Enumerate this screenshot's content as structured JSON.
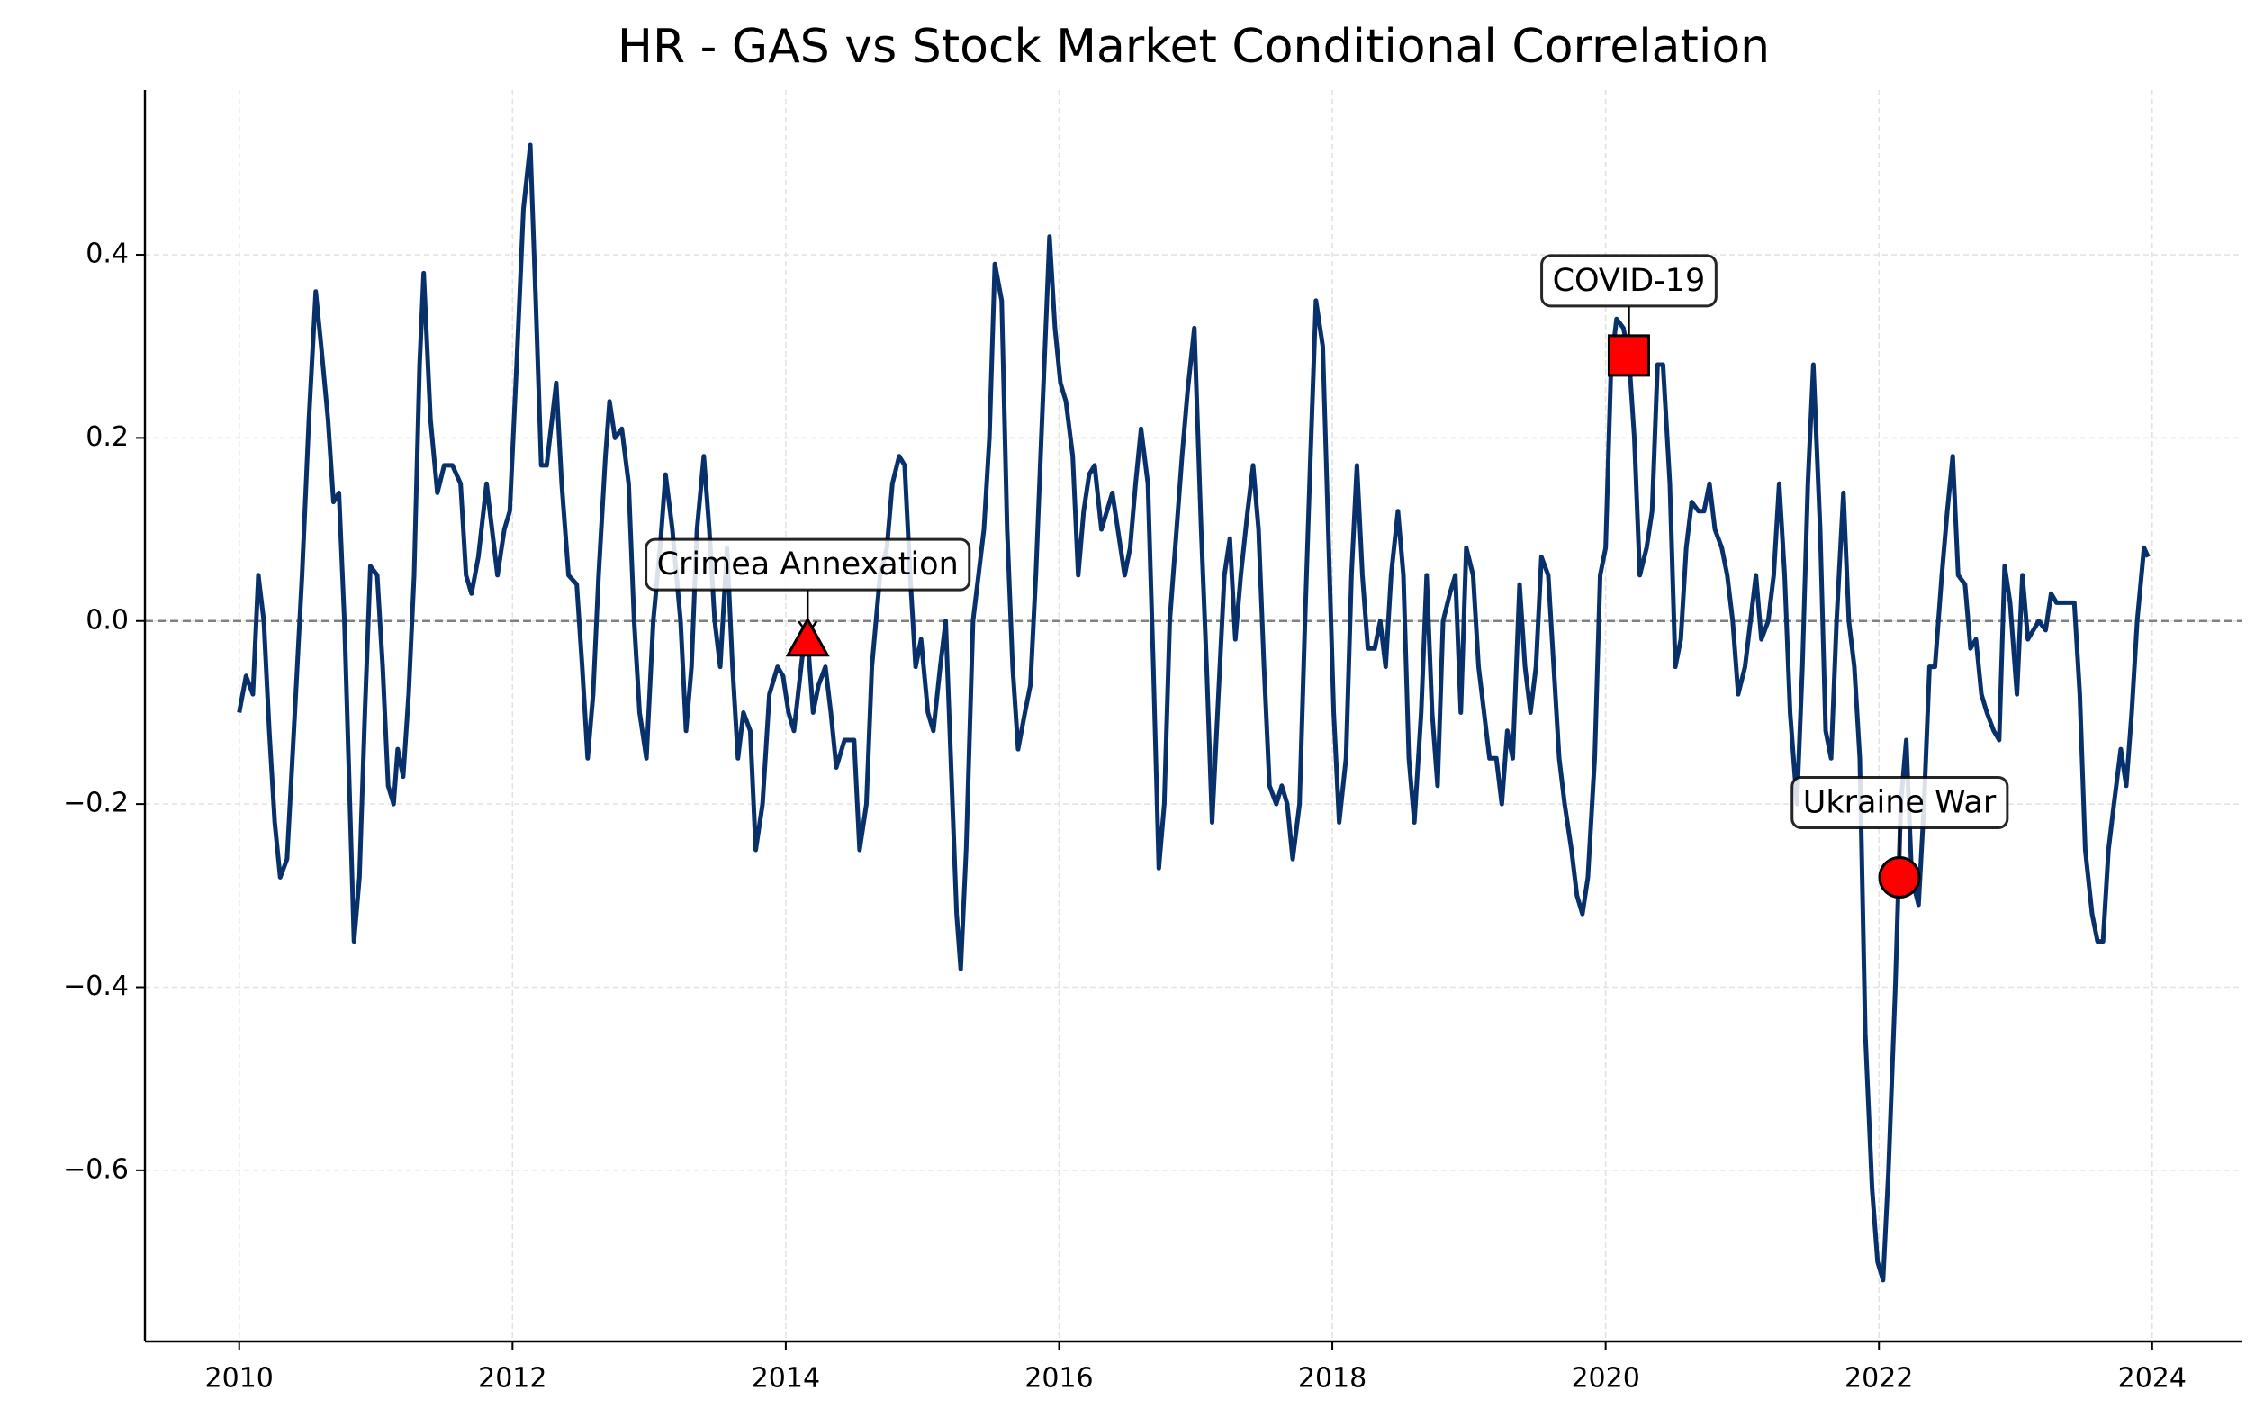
{
  "chart_data": {
    "type": "line",
    "title": "HR - GAS vs Stock Market Conditional Correlation",
    "x": [
      2010.0,
      2010.05,
      2010.1,
      2010.14,
      2010.18,
      2010.22,
      2010.26,
      2010.3,
      2010.35,
      2010.4,
      2010.46,
      2010.51,
      2010.56,
      2010.6,
      2010.65,
      2010.69,
      2010.73,
      2010.77,
      2010.8,
      2010.84,
      2010.88,
      2010.92,
      2010.96,
      2011.01,
      2011.05,
      2011.09,
      2011.13,
      2011.16,
      2011.2,
      2011.24,
      2011.28,
      2011.32,
      2011.35,
      2011.4,
      2011.45,
      2011.5,
      2011.56,
      2011.62,
      2011.66,
      2011.7,
      2011.75,
      2011.81,
      2011.85,
      2011.89,
      2011.94,
      2011.98,
      2012.03,
      2012.08,
      2012.13,
      2012.17,
      2012.21,
      2012.25,
      2012.32,
      2012.36,
      2012.41,
      2012.47,
      2012.51,
      2012.55,
      2012.59,
      2012.63,
      2012.68,
      2012.71,
      2012.75,
      2012.8,
      2012.85,
      2012.89,
      2012.93,
      2012.98,
      2013.03,
      2013.08,
      2013.12,
      2013.17,
      2013.23,
      2013.27,
      2013.31,
      2013.35,
      2013.4,
      2013.44,
      2013.48,
      2013.52,
      2013.57,
      2013.61,
      2013.65,
      2013.69,
      2013.74,
      2013.78,
      2013.83,
      2013.88,
      2013.94,
      2013.98,
      2014.02,
      2014.06,
      2014.12,
      2014.16,
      2014.2,
      2014.24,
      2014.29,
      2014.33,
      2014.37,
      2014.43,
      2014.5,
      2014.54,
      2014.59,
      2014.63,
      2014.69,
      2014.74,
      2014.78,
      2014.83,
      2014.87,
      2014.91,
      2014.95,
      2014.99,
      2015.04,
      2015.08,
      2015.13,
      2015.17,
      2015.22,
      2015.25,
      2015.28,
      2015.32,
      2015.37,
      2015.41,
      2015.45,
      2015.49,
      2015.53,
      2015.58,
      2015.62,
      2015.66,
      2015.7,
      2015.75,
      2015.79,
      2015.83,
      2015.87,
      2015.93,
      2015.97,
      2016.01,
      2016.05,
      2016.1,
      2016.14,
      2016.18,
      2016.22,
      2016.26,
      2016.31,
      2016.35,
      2016.39,
      2016.43,
      2016.48,
      2016.52,
      2016.56,
      2016.6,
      2016.65,
      2016.69,
      2016.73,
      2016.77,
      2016.81,
      2016.86,
      2016.9,
      2016.94,
      2016.99,
      2017.04,
      2017.08,
      2017.12,
      2017.16,
      2017.21,
      2017.25,
      2017.29,
      2017.33,
      2017.38,
      2017.42,
      2017.46,
      2017.5,
      2017.54,
      2017.59,
      2017.63,
      2017.67,
      2017.71,
      2017.76,
      2017.8,
      2017.84,
      2017.88,
      2017.93,
      2017.97,
      2018.01,
      2018.05,
      2018.1,
      2018.14,
      2018.18,
      2018.22,
      2018.26,
      2018.31,
      2018.35,
      2018.39,
      2018.43,
      2018.48,
      2018.52,
      2018.56,
      2018.6,
      2018.65,
      2018.69,
      2018.73,
      2018.77,
      2018.81,
      2018.86,
      2018.9,
      2018.94,
      2018.98,
      2019.03,
      2019.07,
      2019.11,
      2019.15,
      2019.2,
      2019.24,
      2019.28,
      2019.32,
      2019.37,
      2019.41,
      2019.45,
      2019.49,
      2019.53,
      2019.58,
      2019.62,
      2019.66,
      2019.7,
      2019.75,
      2019.79,
      2019.83,
      2019.87,
      2019.92,
      2019.96,
      2020.0,
      2020.04,
      2020.08,
      2020.13,
      2020.17,
      2020.21,
      2020.25,
      2020.3,
      2020.34,
      2020.38,
      2020.42,
      2020.47,
      2020.51,
      2020.55,
      2020.59,
      2020.63,
      2020.68,
      2020.72,
      2020.76,
      2020.8,
      2020.85,
      2020.89,
      2020.93,
      2020.97,
      2021.02,
      2021.06,
      2021.1,
      2021.14,
      2021.19,
      2021.23,
      2021.27,
      2021.31,
      2021.35,
      2021.4,
      2021.44,
      2021.48,
      2021.52,
      2021.57,
      2021.61,
      2021.65,
      2021.69,
      2021.74,
      2021.78,
      2021.82,
      2021.86,
      2021.9,
      2021.95,
      2021.99,
      2022.03,
      2022.07,
      2022.12,
      2022.16,
      2022.2,
      2022.24,
      2022.29,
      2022.33,
      2022.37,
      2022.41,
      2022.46,
      2022.5,
      2022.54,
      2022.58,
      2022.63,
      2022.67,
      2022.71,
      2022.75,
      2022.79,
      2022.84,
      2022.88,
      2022.92,
      2022.96,
      2023.01,
      2023.05,
      2023.09,
      2023.13,
      2023.17,
      2023.22,
      2023.26,
      2023.3,
      2023.34,
      2023.39,
      2023.43,
      2023.47,
      2023.51,
      2023.56,
      2023.6,
      2023.64,
      2023.68,
      2023.72,
      2023.77,
      2023.81,
      2023.85,
      2023.89,
      2023.94,
      2023.97
    ],
    "series": [
      {
        "color": "#08306b",
        "values": [
          -0.1,
          -0.06,
          -0.08,
          0.05,
          0.0,
          -0.12,
          -0.22,
          -0.28,
          -0.26,
          -0.12,
          0.05,
          0.22,
          0.36,
          0.3,
          0.22,
          0.13,
          0.14,
          0.0,
          -0.15,
          -0.35,
          -0.28,
          -0.1,
          0.06,
          0.05,
          -0.05,
          -0.18,
          -0.2,
          -0.14,
          -0.17,
          -0.08,
          0.05,
          0.28,
          0.38,
          0.22,
          0.14,
          0.17,
          0.17,
          0.15,
          0.05,
          0.03,
          0.07,
          0.15,
          0.1,
          0.05,
          0.1,
          0.12,
          0.28,
          0.45,
          0.52,
          0.35,
          0.17,
          0.17,
          0.26,
          0.15,
          0.05,
          0.04,
          -0.05,
          -0.15,
          -0.08,
          0.05,
          0.18,
          0.24,
          0.2,
          0.21,
          0.15,
          0.0,
          -0.1,
          -0.15,
          0.0,
          0.08,
          0.16,
          0.1,
          0.0,
          -0.12,
          -0.05,
          0.1,
          0.18,
          0.1,
          0.0,
          -0.05,
          0.08,
          -0.05,
          -0.15,
          -0.1,
          -0.12,
          -0.25,
          -0.2,
          -0.08,
          -0.05,
          -0.06,
          -0.1,
          -0.12,
          -0.04,
          -0.02,
          -0.1,
          -0.07,
          -0.05,
          -0.1,
          -0.16,
          -0.13,
          -0.13,
          -0.25,
          -0.2,
          -0.05,
          0.05,
          0.08,
          0.15,
          0.18,
          0.17,
          0.05,
          -0.05,
          -0.02,
          -0.1,
          -0.12,
          -0.05,
          0.0,
          -0.2,
          -0.32,
          -0.38,
          -0.25,
          0.0,
          0.05,
          0.1,
          0.2,
          0.39,
          0.35,
          0.1,
          -0.05,
          -0.14,
          -0.1,
          -0.07,
          0.05,
          0.2,
          0.42,
          0.32,
          0.26,
          0.24,
          0.18,
          0.05,
          0.12,
          0.16,
          0.17,
          0.1,
          0.12,
          0.14,
          0.1,
          0.05,
          0.08,
          0.15,
          0.21,
          0.15,
          -0.05,
          -0.27,
          -0.2,
          0.0,
          0.1,
          0.18,
          0.25,
          0.32,
          0.1,
          -0.05,
          -0.22,
          -0.1,
          0.05,
          0.09,
          -0.02,
          0.05,
          0.12,
          0.17,
          0.1,
          -0.05,
          -0.18,
          -0.2,
          -0.18,
          -0.2,
          -0.26,
          -0.2,
          0.0,
          0.18,
          0.35,
          0.3,
          0.1,
          -0.1,
          -0.22,
          -0.15,
          0.05,
          0.17,
          0.05,
          -0.03,
          -0.03,
          0.0,
          -0.05,
          0.05,
          0.12,
          0.05,
          -0.15,
          -0.22,
          -0.1,
          0.05,
          -0.1,
          -0.18,
          0.0,
          0.03,
          0.05,
          -0.1,
          0.08,
          0.05,
          -0.05,
          -0.1,
          -0.15,
          -0.15,
          -0.2,
          -0.12,
          -0.15,
          0.04,
          -0.05,
          -0.1,
          -0.05,
          0.07,
          0.05,
          -0.05,
          -0.15,
          -0.2,
          -0.25,
          -0.3,
          -0.32,
          -0.28,
          -0.15,
          0.05,
          0.08,
          0.28,
          0.33,
          0.32,
          0.29,
          0.2,
          0.05,
          0.08,
          0.12,
          0.28,
          0.28,
          0.15,
          -0.05,
          -0.02,
          0.08,
          0.13,
          0.12,
          0.12,
          0.15,
          0.1,
          0.08,
          0.05,
          0.0,
          -0.08,
          -0.05,
          0.0,
          0.05,
          -0.02,
          0.0,
          0.05,
          0.15,
          0.05,
          -0.1,
          -0.2,
          -0.05,
          0.15,
          0.28,
          0.1,
          -0.12,
          -0.15,
          0.0,
          0.14,
          0.0,
          -0.05,
          -0.15,
          -0.45,
          -0.62,
          -0.7,
          -0.72,
          -0.6,
          -0.4,
          -0.2,
          -0.13,
          -0.28,
          -0.31,
          -0.2,
          -0.05,
          -0.05,
          0.05,
          0.12,
          0.18,
          0.05,
          0.04,
          -0.03,
          -0.02,
          -0.08,
          -0.1,
          -0.12,
          -0.13,
          0.06,
          0.02,
          -0.08,
          0.05,
          -0.02,
          -0.01,
          0.0,
          -0.01,
          0.03,
          0.02,
          0.02,
          0.02,
          0.02,
          -0.08,
          -0.25,
          -0.32,
          -0.35,
          -0.35,
          -0.25,
          -0.2,
          -0.14,
          -0.18,
          -0.1,
          0.0,
          0.08,
          0.07
        ]
      }
    ],
    "xlim": [
      2009.31,
      2024.66
    ],
    "xticks": [
      2010,
      2012,
      2014,
      2016,
      2018,
      2020,
      2022,
      2024
    ],
    "ylim": [
      -0.787,
      0.58
    ],
    "yticks": [
      {
        "value": -0.6,
        "label": "−0.6"
      },
      {
        "value": -0.4,
        "label": "−0.4"
      },
      {
        "value": -0.2,
        "label": "−0.2"
      },
      {
        "value": 0.0,
        "label": "0.0"
      },
      0.2,
      0.4
    ],
    "hline": 0,
    "grid": true,
    "annotations": [
      {
        "text": "Crimea Annexation",
        "x": 2014.16,
        "y": -0.02,
        "marker": "triangle",
        "color": "red"
      },
      {
        "text": "COVID-19",
        "x": 2020.17,
        "y": 0.29,
        "marker": "square",
        "color": "red"
      },
      {
        "text": "Ukraine War",
        "x": 2022.15,
        "y": -0.28,
        "marker": "circle",
        "color": "red"
      }
    ]
  }
}
